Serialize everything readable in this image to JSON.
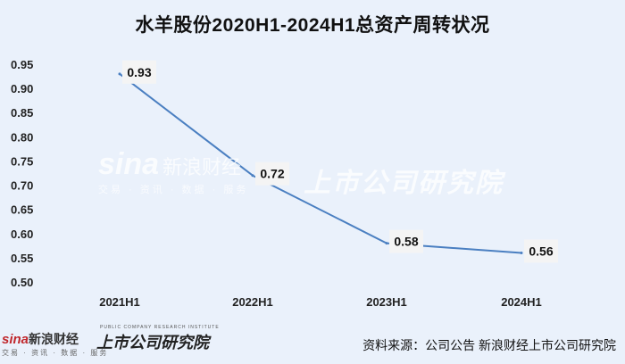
{
  "title": "水羊股份2020H1-2024H1总资产周转状况",
  "watermark": {
    "logo": "sina",
    "name": "新浪财经",
    "sub": "交易 · 资讯 · 数据 · 服务",
    "right": "上市公司研究院"
  },
  "footer": {
    "logo": "sina",
    "name": "新浪财经",
    "sub": "交易 · 资讯 · 数据 · 服务",
    "brand": "上市公司研究院",
    "brand_sub": "PUBLIC COMPANY RESEARCH INSTITUTE",
    "source": "资料来源：公司公告 新浪财经上市公司研究院"
  },
  "colors": {
    "line": "#4a7fc1",
    "background": "#eaf1fb"
  },
  "chart_data": {
    "type": "line",
    "categories": [
      "2021H1",
      "2022H1",
      "2023H1",
      "2024H1"
    ],
    "values": [
      0.93,
      0.72,
      0.58,
      0.56
    ],
    "data_labels": [
      "0.93",
      "0.72",
      "0.58",
      "0.56"
    ],
    "ylim": [
      0.5,
      0.95
    ],
    "yticks": [
      "0.95",
      "0.90",
      "0.85",
      "0.80",
      "0.75",
      "0.70",
      "0.65",
      "0.60",
      "0.55",
      "0.50"
    ],
    "grid": false,
    "legend": "none"
  }
}
